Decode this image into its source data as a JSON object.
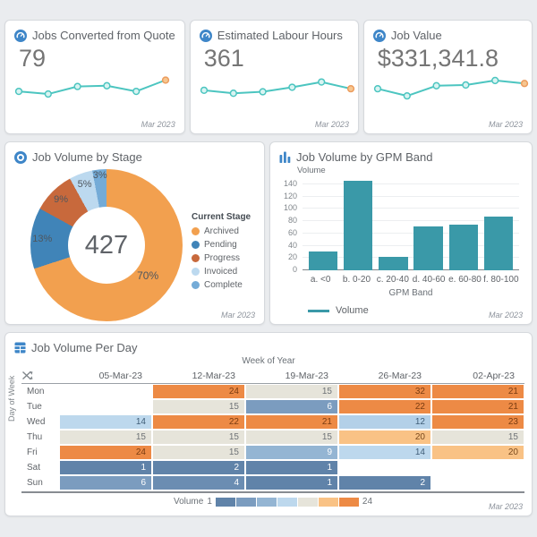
{
  "footer_label": "Mar 2023",
  "accent_blue": "#3e86c8",
  "chart_data": [
    {
      "type": "line",
      "title": "Jobs Converted from Quote",
      "kpi_value": "79",
      "footer": "Mar 2023",
      "values": [
        45,
        38,
        58,
        60,
        45,
        75
      ],
      "line_color": "#4cc5c0",
      "point_fill": "#d9f4f2",
      "last_point_fill": "#f6c690",
      "last_point_stroke": "#ec9c5d"
    },
    {
      "type": "line",
      "title": "Estimated Labour Hours",
      "kpi_value": "361",
      "footer": "Mar 2023",
      "values": [
        48,
        40,
        44,
        56,
        70,
        52
      ],
      "line_color": "#4cc5c0",
      "point_fill": "#d9f4f2",
      "last_point_fill": "#f6c690",
      "last_point_stroke": "#ec9c5d"
    },
    {
      "type": "line",
      "title": "Job Value",
      "kpi_value": "$331,341.8",
      "footer": "Mar 2023",
      "values": [
        52,
        33,
        60,
        62,
        74,
        66
      ],
      "line_color": "#4cc5c0",
      "point_fill": "#d9f4f2",
      "last_point_fill": "#f6c690",
      "last_point_stroke": "#ec9c5d"
    },
    {
      "type": "pie",
      "title": "Job Volume by Stage",
      "total": "427",
      "footer": "Mar 2023",
      "legend_title": "Current Stage",
      "labels": [
        "Archived",
        "Pending",
        "Progress",
        "Invoiced",
        "Complete"
      ],
      "values": [
        70,
        13,
        9,
        5,
        3
      ],
      "pct_labels": [
        "70%",
        "13%",
        "9%",
        "5%",
        "3%"
      ],
      "colors": [
        "#f2a04f",
        "#4084b8",
        "#c8693c",
        "#bcd9ef",
        "#74abd7"
      ]
    },
    {
      "type": "bar",
      "title": "Job Volume by GPM Band",
      "footer": "Mar 2023",
      "ylabel": "Volume",
      "xlabel": "GPM Band",
      "legend": "Volume",
      "categories": [
        "a. <0",
        "b. 0-20",
        "c. 20-40",
        "d. 40-60",
        "e. 60-80",
        "f. 80-100"
      ],
      "values": [
        30,
        146,
        22,
        72,
        75,
        88
      ],
      "y_ticks": [
        0,
        20,
        40,
        60,
        80,
        100,
        120,
        140
      ],
      "y_max": 150,
      "bar_color": "#3a99a8"
    },
    {
      "type": "heatmap",
      "title": "Job Volume Per Day",
      "footer": "Mar 2023",
      "x_axis_label": "Week of Year",
      "y_axis_label": "Day of Week",
      "columns": [
        "05-Mar-23",
        "12-Mar-23",
        "19-Mar-23",
        "26-Mar-23",
        "02-Apr-23"
      ],
      "rows": [
        "Mon",
        "Tue",
        "Wed",
        "Thu",
        "Fri",
        "Sat",
        "Sun"
      ],
      "values": [
        [
          null,
          24,
          15,
          32,
          21
        ],
        [
          null,
          15,
          6,
          22,
          21
        ],
        [
          14,
          22,
          21,
          12,
          23
        ],
        [
          15,
          15,
          15,
          20,
          15
        ],
        [
          24,
          15,
          9,
          14,
          20
        ],
        [
          1,
          2,
          1,
          null,
          null
        ],
        [
          6,
          4,
          1,
          2,
          null
        ]
      ],
      "legend": {
        "label": "Volume",
        "min": 1,
        "max": 24,
        "ramp": [
          "#6083a9",
          "#7b9cbf",
          "#94b5d3",
          "#bdd8ed",
          "#e6e4da",
          "#f9c285",
          "#ed8a45"
        ]
      }
    }
  ]
}
